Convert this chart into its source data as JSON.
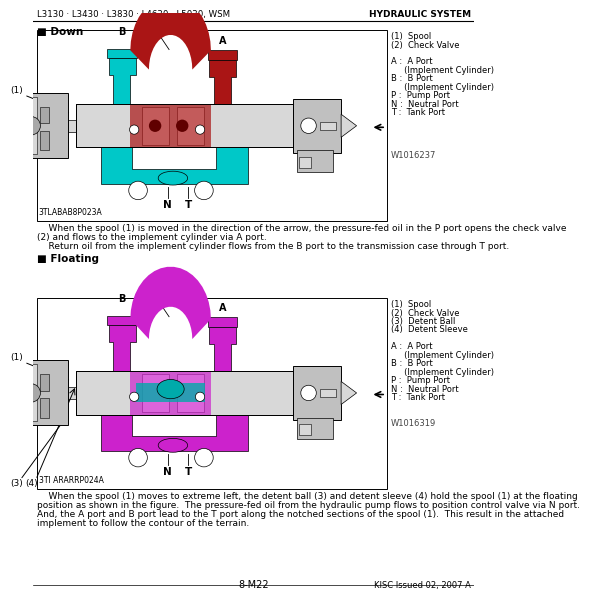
{
  "header_left": "L3130 · L3430 · L3830 · L4630 · L5030, WSM",
  "header_right": "HYDRAULIC SYSTEM",
  "footer_center": "8-M22",
  "footer_right": "KISC Issued 02, 2007 A",
  "section1_title": "Down",
  "section2_title": "Floating",
  "diagram1_label": "3TLABAB8P023A",
  "diagram1_watermark": "W1016237",
  "diagram2_label": "3TI ARARRP024A",
  "diagram2_watermark": "W1016319",
  "legend1": [
    "(1)  Spool",
    "(2)  Check Valve",
    "",
    "A :  A Port",
    "     (Implement Cylinder)",
    "B :  B Port",
    "     (Implement Cylinder)",
    "P :  Pump Port",
    "N :  Neutral Port",
    "T :  Tank Port"
  ],
  "legend2": [
    "(1)  Spool",
    "(2)  Check Valve",
    "(3)  Detent Ball",
    "(4)  Detent Sleeve",
    "",
    "A :  A Port",
    "     (Implement Cylinder)",
    "B :  B Port",
    "     (Implement Cylinder)",
    "P :  Pump Port",
    "N :  Neutral Port",
    "T :  Tank Port"
  ],
  "desc1_line1": "    When the spool (1) is moved in the direction of the arrow, the pressure-fed oil in the P port opens the check valve",
  "desc1_line2": "(2) and flows to the implement cylinder via A port.",
  "desc1_line3": "    Return oil from the implement cylinder flows from the B port to the transmission case through T port.",
  "desc2_line1": "    When the spool (1) moves to extreme left, the detent ball (3) and detent sleeve (4) hold the spool (1) at the floating",
  "desc2_line2": "position as shown in the figure.  The pressure-fed oil from the hydraulic pump flows to position control valve via N port.",
  "desc2_line3": "And, the A port and B port lead to the T port along the notched sections of the spool (1).  This result in the attached",
  "desc2_line4": "implement to follow the contour of the terrain.",
  "cyan": "#00C8C8",
  "dark_red": "#8B0000",
  "mid_red": "#AA1515",
  "magenta": "#CC22CC",
  "teal": "#00AAAA",
  "body_gray": "#D0D0D0",
  "light_gray": "#E0E0E0",
  "dark_gray": "#A0A0A0",
  "white": "#FFFFFF",
  "black": "#000000"
}
